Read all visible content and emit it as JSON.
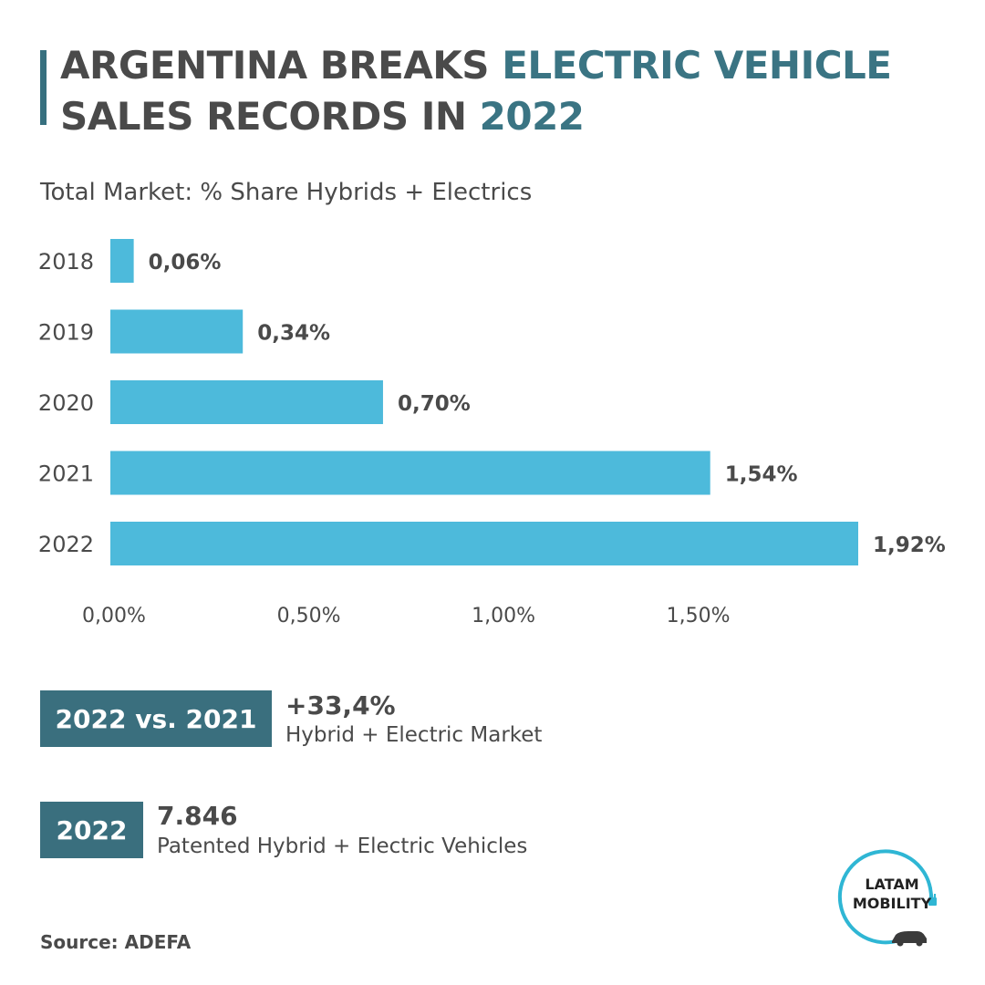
{
  "header": {
    "title_part1": "ARGENTINA BREAKS ",
    "title_part2": "ELECTRIC VEHICLE",
    "title_part3": "SALES RECORDS IN ",
    "title_part4": "2022"
  },
  "chart_data": {
    "type": "bar",
    "orientation": "horizontal",
    "title": "Total Market: % Share Hybrids + Electrics",
    "categories": [
      "2018",
      "2019",
      "2020",
      "2021",
      "2022"
    ],
    "values": [
      0.06,
      0.34,
      0.7,
      1.54,
      1.92
    ],
    "value_labels": [
      "0,06%",
      "0,34%",
      "0,70%",
      "1,54%",
      "1,92%"
    ],
    "xlim": [
      0,
      1.92
    ],
    "xticks": [
      0,
      0.5,
      1.0,
      1.5
    ],
    "xtick_labels": [
      "0,00%",
      "0,50%",
      "1,00%",
      "1,50%"
    ],
    "grid": false,
    "bar_color": "#4dbadb"
  },
  "stats": [
    {
      "box_label": "2022 vs. 2021",
      "value": "+33,4%",
      "description": "Hybrid + Electric Market"
    },
    {
      "box_label": "2022",
      "value": "7.846",
      "description": "Patented Hybrid + Electric Vehicles"
    }
  ],
  "source": "Source: ADEFA",
  "logo": {
    "line1": "LATAM",
    "line2": "MOBILITY",
    "icon": "plug-car-logo-icon"
  },
  "colors": {
    "accent": "#3a7483",
    "box": "#3a6f7e",
    "bar": "#4dbadb",
    "text": "#4a4a4a",
    "logo_ring": "#2fb6d4"
  }
}
